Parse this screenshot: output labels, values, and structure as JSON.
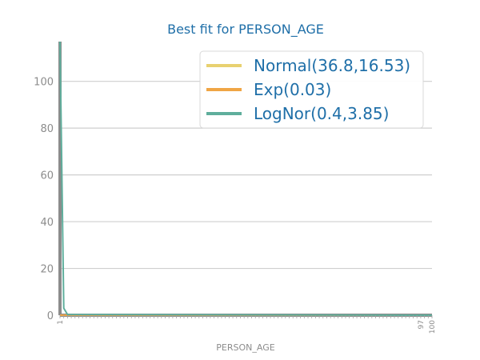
{
  "chart_data": {
    "type": "line",
    "title": "Best fit for PERSON_AGE",
    "xlabel": "PERSON_AGE",
    "ylabel": "",
    "ylim": [
      0,
      117
    ],
    "y_ticks": [
      0,
      20,
      40,
      60,
      80,
      100
    ],
    "x_tick_labels_visible": [
      "1",
      "97",
      "100"
    ],
    "grid": "horizontal",
    "legend_position": "top-right",
    "series": [
      {
        "name": "Normal(36.8,16.53)",
        "color": "#e8d170",
        "x": [
          1,
          100
        ],
        "y": [
          0,
          0
        ]
      },
      {
        "name": "Exp(0.03)",
        "color": "#f0a545",
        "x": [
          1,
          100
        ],
        "y": [
          0,
          0
        ]
      },
      {
        "name": "LogNor(0.4,3.85)",
        "color": "#5fae9c",
        "x": [
          1,
          2,
          3,
          100
        ],
        "y": [
          117,
          3,
          0.3,
          0
        ]
      }
    ],
    "histogram": {
      "color": "#8c8c8c",
      "first_bin_value": 117,
      "other_bins_value": 0
    }
  }
}
